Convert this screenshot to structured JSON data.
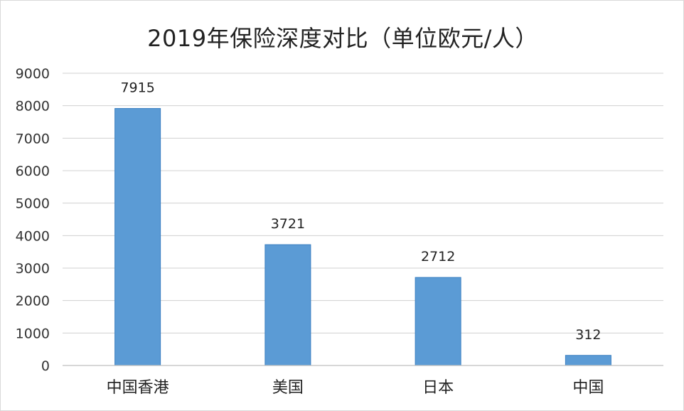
{
  "chart_data": {
    "type": "bar",
    "title": "2019年保险深度对比（单位欧元/人）",
    "categories": [
      "中国香港",
      "美国",
      "日本",
      "中国"
    ],
    "values": [
      7915,
      3721,
      2712,
      312
    ],
    "data_labels": [
      "7915",
      "3721",
      "2712",
      "312"
    ],
    "yticks": [
      "0",
      "1000",
      "2000",
      "3000",
      "4000",
      "5000",
      "6000",
      "7000",
      "8000",
      "9000"
    ],
    "ylim": [
      0,
      9000
    ],
    "xlabel": "",
    "ylabel": "",
    "grid": true,
    "legend": "none",
    "bar_color": "#5b9bd5",
    "bar_edge_color": "#3a7fc1",
    "grid_color": "#d0d0d0"
  }
}
